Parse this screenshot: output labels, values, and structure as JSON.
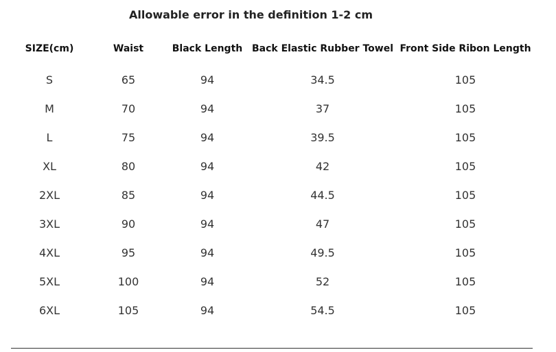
{
  "header": {
    "title": "Allowable error in the definition 1-2 cm"
  },
  "table": {
    "columns": [
      "SIZE(cm)",
      "Waist",
      "Black Length",
      "Back Elastic Rubber Towel",
      "Front Side Ribon Length"
    ],
    "rows": [
      [
        "S",
        "65",
        "94",
        "34.5",
        "105"
      ],
      [
        "M",
        "70",
        "94",
        "37",
        "105"
      ],
      [
        "L",
        "75",
        "94",
        "39.5",
        "105"
      ],
      [
        "XL",
        "80",
        "94",
        "42",
        "105"
      ],
      [
        "2XL",
        "85",
        "94",
        "44.5",
        "105"
      ],
      [
        "3XL",
        "90",
        "94",
        "47",
        "105"
      ],
      [
        "4XL",
        "95",
        "94",
        "49.5",
        "105"
      ],
      [
        "5XL",
        "100",
        "94",
        "52",
        "105"
      ],
      [
        "6XL",
        "105",
        "94",
        "54.5",
        "105"
      ]
    ]
  }
}
